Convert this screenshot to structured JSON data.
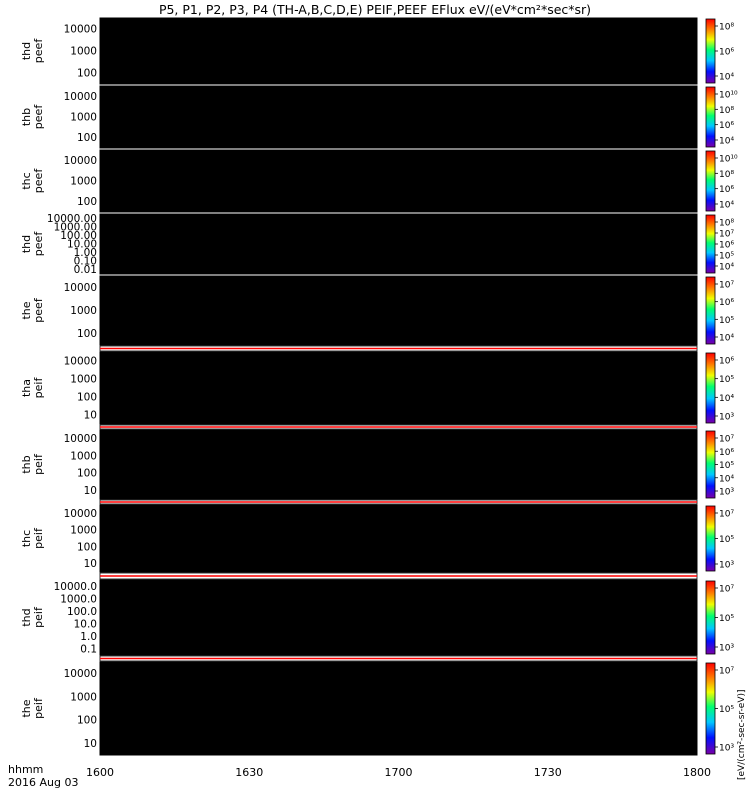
{
  "title": "P5, P1, P2, P3, P4 (TH-A,B,C,D,E) PEIF,PEEF EFlux eV/(eV*cm²*sec*sr)",
  "footer": {
    "label1": "hhmm",
    "label2": "2016 Aug 03"
  },
  "colorbar_label": "[eV/(cm²-sec-sr-eV)]",
  "chart_data": {
    "type": "heatmap",
    "x_ticks": [
      "1600",
      "1630",
      "1700",
      "1730",
      "1800"
    ],
    "xlim": [
      "16:00",
      "18:00"
    ],
    "scale": "log",
    "panels": [
      {
        "name": "thd",
        "sub": "peef",
        "yticks": [
          "100",
          "1000",
          "10000"
        ],
        "cbar": [
          "10⁸",
          "10⁶",
          "10⁴"
        ]
      },
      {
        "name": "thb",
        "sub": "peef",
        "yticks": [
          "100",
          "1000",
          "10000"
        ],
        "cbar": [
          "10¹⁰",
          "10⁸",
          "10⁶",
          "10⁴"
        ]
      },
      {
        "name": "thc",
        "sub": "peef",
        "yticks": [
          "100",
          "1000",
          "10000"
        ],
        "cbar": [
          "10¹⁰",
          "10⁸",
          "10⁶",
          "10⁴"
        ]
      },
      {
        "name": "thd",
        "sub": "peef",
        "yticks": [
          "0.01",
          "0.10",
          "1.00",
          "10.00",
          "100.00",
          "1000.00",
          "10000.00"
        ],
        "cbar": [
          "10⁸",
          "10⁷",
          "10⁶",
          "10⁵",
          "10⁴"
        ]
      },
      {
        "name": "the",
        "sub": "peef",
        "yticks": [
          "100",
          "1000",
          "10000"
        ],
        "cbar": [
          "10⁷",
          "10⁶",
          "10⁵",
          "10⁴"
        ]
      },
      {
        "name": "tha",
        "sub": "peif",
        "yticks": [
          "10",
          "100",
          "1000",
          "10000"
        ],
        "cbar": [
          "10⁶",
          "10⁵",
          "10⁴",
          "10³"
        ]
      },
      {
        "name": "thb",
        "sub": "peif",
        "yticks": [
          "10",
          "100",
          "1000",
          "10000"
        ],
        "cbar": [
          "10⁷",
          "10⁶",
          "10⁵",
          "10⁴",
          "10³"
        ]
      },
      {
        "name": "thc",
        "sub": "peif",
        "yticks": [
          "10",
          "100",
          "1000",
          "10000"
        ],
        "cbar": [
          "10⁷",
          "10⁵",
          "10³"
        ]
      },
      {
        "name": "thd",
        "sub": "peif",
        "yticks": [
          "0.1",
          "1.0",
          "10.0",
          "100.0",
          "1000.0",
          "10000.0"
        ],
        "cbar": [
          "10⁷",
          "10⁵",
          "10³"
        ]
      },
      {
        "name": "the",
        "sub": "peif",
        "yticks": [
          "10",
          "100",
          "1000",
          "10000"
        ],
        "cbar": [
          "10⁷",
          "10⁵",
          "10³"
        ]
      }
    ]
  }
}
